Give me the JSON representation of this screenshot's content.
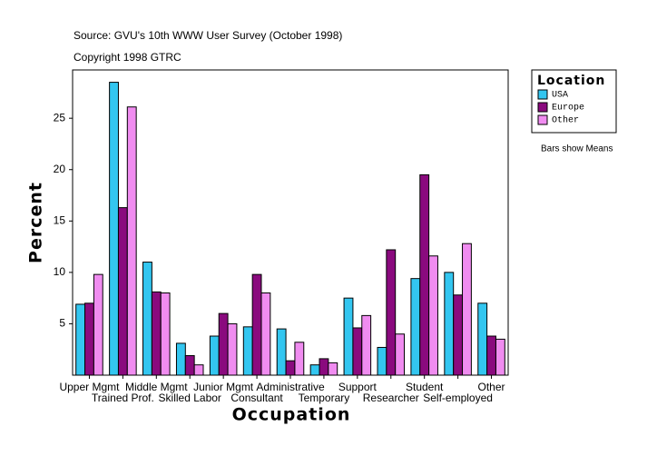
{
  "chart_data": {
    "type": "bar",
    "title": "Source: GVU's 10th WWW User Survey (October 1998)",
    "subtitle": "Copyright 1998 GTRC",
    "x_label": "Occupation",
    "y_label": "Percent",
    "legend_title": "Location",
    "annotation": "Bars show Means",
    "categories": [
      "Upper Mgmt",
      "Trained Prof.",
      "Middle Mgmt",
      "Skilled Labor",
      "Junior Mgmt",
      "Consultant",
      "Administrative",
      "Temporary",
      "Support",
      "Researcher",
      "Student",
      "Self-employed",
      "Other"
    ],
    "series": [
      {
        "name": "USA",
        "color": "#33c6f0",
        "values": [
          6.9,
          28.5,
          11.0,
          3.1,
          3.8,
          4.7,
          4.5,
          1.0,
          7.5,
          2.7,
          9.4,
          10.0,
          7.0
        ]
      },
      {
        "name": "Europe",
        "color": "#8a0a7e",
        "values": [
          7.0,
          16.3,
          8.1,
          1.9,
          6.0,
          9.8,
          1.4,
          1.6,
          4.6,
          12.2,
          19.5,
          7.8,
          3.8
        ]
      },
      {
        "name": "Other",
        "color": "#f08cf0",
        "values": [
          9.8,
          26.1,
          8.0,
          1.0,
          5.0,
          8.0,
          3.2,
          1.2,
          5.8,
          4.0,
          11.6,
          12.8,
          3.5
        ]
      }
    ],
    "ylim": [
      0,
      29.7
    ],
    "yticks": [
      5,
      10,
      15,
      20,
      25
    ],
    "grid": false
  }
}
